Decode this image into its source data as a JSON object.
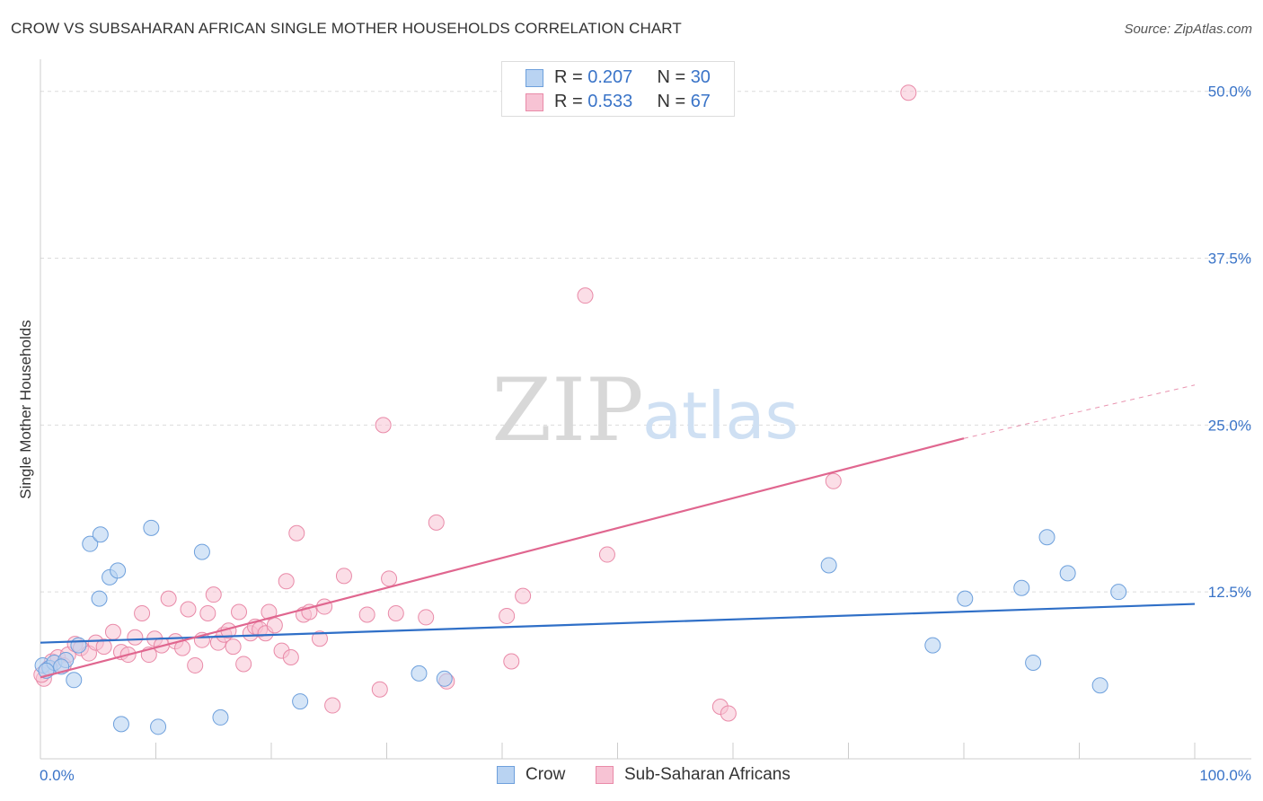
{
  "header": {
    "title": "CROW VS SUBSAHARAN AFRICAN SINGLE MOTHER HOUSEHOLDS CORRELATION CHART",
    "source": "Source: ZipAtlas.com"
  },
  "watermark": {
    "zip": "ZIP",
    "atlas": "atlas"
  },
  "legend": {
    "rows": [
      {
        "r_label": "R = ",
        "r_value": "0.207",
        "n_label": "N = ",
        "n_value": "30"
      },
      {
        "r_label": "R = ",
        "r_value": "0.533",
        "n_label": "N = ",
        "n_value": "67"
      }
    ],
    "bottom": [
      {
        "label": "Crow"
      },
      {
        "label": "Sub-Saharan Africans"
      }
    ]
  },
  "colors": {
    "crow_fill": "#b9d3f2",
    "crow_stroke": "#6ea0dc",
    "crow_line": "#2f6fc7",
    "ssa_fill": "#f7c3d4",
    "ssa_stroke": "#e98aa8",
    "ssa_line": "#e0668f",
    "axis_label": "#3a74c8"
  },
  "chart_data": {
    "type": "scatter",
    "title": "CROW VS SUBSAHARAN AFRICAN SINGLE MOTHER HOUSEHOLDS CORRELATION CHART",
    "ylabel": "Single Mother Households",
    "xlabel": "",
    "xlim": [
      0,
      100
    ],
    "ylim": [
      0,
      52
    ],
    "x_tick_labels": [
      "0.0%",
      "100.0%"
    ],
    "y_ticks": [
      12.5,
      25.0,
      37.5,
      50.0
    ],
    "y_tick_labels": [
      "12.5%",
      "25.0%",
      "37.5%",
      "50.0%"
    ],
    "grid": "horizontal dashed",
    "series": [
      {
        "name": "Crow",
        "points": [
          [
            0.2,
            7.0
          ],
          [
            0.8,
            6.8
          ],
          [
            1.2,
            7.2
          ],
          [
            2.2,
            7.4
          ],
          [
            2.9,
            5.9
          ],
          [
            3.3,
            8.5
          ],
          [
            4.3,
            16.1
          ],
          [
            5.2,
            16.8
          ],
          [
            5.1,
            12.0
          ],
          [
            6.0,
            13.6
          ],
          [
            6.7,
            14.1
          ],
          [
            7.0,
            2.6
          ],
          [
            9.6,
            17.3
          ],
          [
            10.2,
            2.4
          ],
          [
            14.0,
            15.5
          ],
          [
            15.6,
            3.1
          ],
          [
            22.5,
            4.3
          ],
          [
            32.8,
            6.4
          ],
          [
            35.0,
            6.0
          ],
          [
            68.3,
            14.5
          ],
          [
            77.3,
            8.5
          ],
          [
            80.1,
            12.0
          ],
          [
            85.0,
            12.8
          ],
          [
            86.0,
            7.2
          ],
          [
            87.2,
            16.6
          ],
          [
            89.0,
            13.9
          ],
          [
            91.8,
            5.5
          ],
          [
            93.4,
            12.5
          ],
          [
            0.5,
            6.6
          ],
          [
            1.8,
            6.9
          ]
        ],
        "trend": {
          "x": [
            0,
            100
          ],
          "y": [
            8.7,
            11.6
          ]
        }
      },
      {
        "name": "Sub-Saharan Africans",
        "points": [
          [
            0.3,
            6.0
          ],
          [
            0.7,
            6.8
          ],
          [
            1.0,
            7.3
          ],
          [
            1.5,
            7.6
          ],
          [
            2.0,
            7.0
          ],
          [
            2.4,
            7.8
          ],
          [
            3.0,
            8.6
          ],
          [
            3.5,
            8.3
          ],
          [
            4.2,
            7.9
          ],
          [
            4.8,
            8.7
          ],
          [
            5.5,
            8.4
          ],
          [
            6.3,
            9.5
          ],
          [
            7.0,
            8.0
          ],
          [
            7.6,
            7.8
          ],
          [
            8.2,
            9.1
          ],
          [
            8.8,
            10.9
          ],
          [
            9.4,
            7.8
          ],
          [
            9.9,
            9.0
          ],
          [
            10.5,
            8.5
          ],
          [
            11.1,
            12.0
          ],
          [
            11.7,
            8.8
          ],
          [
            12.3,
            8.3
          ],
          [
            12.8,
            11.2
          ],
          [
            13.4,
            7.0
          ],
          [
            14.0,
            8.9
          ],
          [
            14.5,
            10.9
          ],
          [
            15.0,
            12.3
          ],
          [
            15.4,
            8.7
          ],
          [
            15.9,
            9.3
          ],
          [
            16.3,
            9.6
          ],
          [
            16.7,
            8.4
          ],
          [
            17.2,
            11.0
          ],
          [
            17.6,
            7.1
          ],
          [
            18.2,
            9.4
          ],
          [
            18.6,
            9.9
          ],
          [
            19.0,
            9.7
          ],
          [
            19.5,
            9.4
          ],
          [
            19.8,
            11.0
          ],
          [
            20.3,
            10.0
          ],
          [
            20.9,
            8.1
          ],
          [
            21.3,
            13.3
          ],
          [
            21.7,
            7.6
          ],
          [
            22.2,
            16.9
          ],
          [
            22.8,
            10.8
          ],
          [
            23.3,
            11.0
          ],
          [
            24.2,
            9.0
          ],
          [
            24.6,
            11.4
          ],
          [
            25.3,
            4.0
          ],
          [
            26.3,
            13.7
          ],
          [
            28.3,
            10.8
          ],
          [
            29.4,
            5.2
          ],
          [
            29.7,
            25.0
          ],
          [
            30.2,
            13.5
          ],
          [
            30.8,
            10.9
          ],
          [
            33.4,
            10.6
          ],
          [
            34.3,
            17.7
          ],
          [
            35.2,
            5.8
          ],
          [
            40.4,
            10.7
          ],
          [
            40.8,
            7.3
          ],
          [
            41.8,
            12.2
          ],
          [
            47.2,
            34.7
          ],
          [
            49.1,
            15.3
          ],
          [
            58.9,
            3.9
          ],
          [
            59.6,
            3.4
          ],
          [
            68.7,
            20.8
          ],
          [
            75.2,
            49.9
          ],
          [
            0.1,
            6.3
          ]
        ],
        "trend": {
          "x": [
            0,
            80
          ],
          "y": [
            6.1,
            24.0
          ]
        },
        "trend_extension": {
          "x": [
            80,
            100
          ],
          "y": [
            24.0,
            28.0
          ]
        }
      }
    ]
  }
}
